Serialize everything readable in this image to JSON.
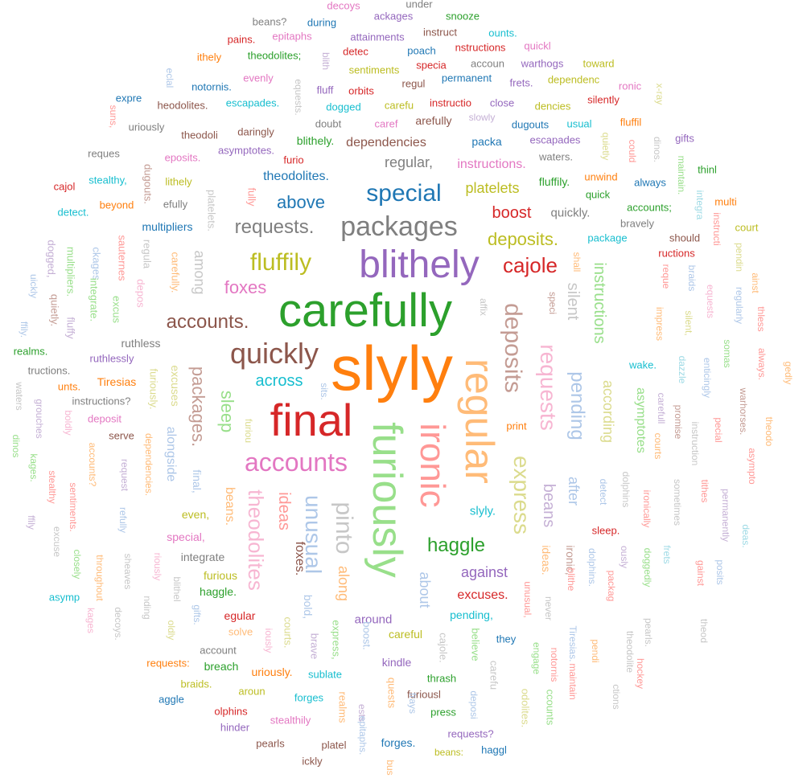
{
  "palette": {
    "blue": "#1f77b4",
    "orange": "#ff7f0e",
    "green": "#2ca02c",
    "red": "#d62728",
    "purple": "#9467bd",
    "brown": "#8c564b",
    "pink": "#e377c2",
    "gray": "#7f7f7f",
    "olive": "#bcbd22",
    "cyan": "#17becf",
    "lightblue": "#aec7e8",
    "lightorange": "#ffbb78",
    "lightgreen": "#98df8a",
    "lightred": "#ff9896",
    "lightpurple": "#c5b0d5",
    "lightbrown": "#c49c94",
    "lightpink": "#f7b6d2",
    "lightgray": "#c7c7c7",
    "lightolive": "#dbdb8d",
    "lightcyan": "#9edae5"
  },
  "words": [
    {
      "text": "slyly",
      "color": "orange"
    },
    {
      "text": "carefully",
      "color": "green"
    },
    {
      "text": "final",
      "color": "red"
    },
    {
      "text": "furiously",
      "color": "lightgreen"
    },
    {
      "text": "regular",
      "color": "lightorange"
    },
    {
      "text": "blithely",
      "color": "purple"
    },
    {
      "text": "ironic",
      "color": "lightred"
    },
    {
      "text": "packages",
      "color": "gray"
    },
    {
      "text": "quickly",
      "color": "brown"
    },
    {
      "text": "accounts",
      "color": "pink"
    },
    {
      "text": "deposits",
      "color": "lightbrown"
    },
    {
      "text": "special",
      "color": "blue"
    },
    {
      "text": "express",
      "color": "lightolive"
    },
    {
      "text": "pinto",
      "color": "lightgray"
    },
    {
      "text": "requests",
      "color": "lightpink"
    },
    {
      "text": "unusual",
      "color": "lightblue"
    },
    {
      "text": "fluffily",
      "color": "olive"
    },
    {
      "text": "cajole",
      "color": "red"
    },
    {
      "text": "theodolites",
      "color": "lightpink"
    },
    {
      "text": "haggle",
      "color": "green"
    },
    {
      "text": "pending",
      "color": "lightblue"
    },
    {
      "text": "requests.",
      "color": "gray"
    },
    {
      "text": "accounts.",
      "color": "brown"
    },
    {
      "text": "packages.",
      "color": "lightbrown"
    },
    {
      "text": "instructions",
      "color": "lightgreen"
    },
    {
      "text": "deposits.",
      "color": "olive"
    },
    {
      "text": "foxes",
      "color": "pink"
    },
    {
      "text": "above",
      "color": "blue"
    },
    {
      "text": "ideas",
      "color": "lightred"
    },
    {
      "text": "sleep",
      "color": "lightgreen"
    },
    {
      "text": "beans",
      "color": "lightpurple"
    },
    {
      "text": "silent",
      "color": "lightgray"
    },
    {
      "text": "according",
      "color": "lightolive"
    },
    {
      "text": "boost",
      "color": "red"
    },
    {
      "text": "across",
      "color": "cyan"
    },
    {
      "text": "asymptotes",
      "color": "lightgreen"
    },
    {
      "text": "after",
      "color": "lightblue"
    },
    {
      "text": "along",
      "color": "lightorange"
    },
    {
      "text": "about",
      "color": "lightblue"
    },
    {
      "text": "against",
      "color": "purple"
    },
    {
      "text": "platelets",
      "color": "olive"
    },
    {
      "text": "theodolites.",
      "color": "blue"
    },
    {
      "text": "among",
      "color": "lightgray"
    },
    {
      "text": "foxes.",
      "color": "brown"
    },
    {
      "text": "ruthless",
      "color": "gray"
    },
    {
      "text": "instructions.",
      "color": "pink"
    },
    {
      "text": "regular,",
      "color": "gray"
    },
    {
      "text": "dependencies",
      "color": "brown"
    },
    {
      "text": "excuses.",
      "color": "red"
    },
    {
      "text": "quickly.",
      "color": "gray"
    },
    {
      "text": "slyly.",
      "color": "cyan"
    },
    {
      "text": "bold,",
      "color": "lightblue"
    },
    {
      "text": "around",
      "color": "purple"
    },
    {
      "text": "pending,",
      "color": "cyan"
    },
    {
      "text": "ironic,",
      "color": "lightbrown"
    },
    {
      "text": "sleep.",
      "color": "red"
    },
    {
      "text": "ideas.",
      "color": "lightorange"
    },
    {
      "text": "beans.",
      "color": "lightorange"
    },
    {
      "text": "alongside",
      "color": "lightblue"
    },
    {
      "text": "excuses",
      "color": "lightolive"
    },
    {
      "text": "final,",
      "color": "lightblue"
    },
    {
      "text": "special,",
      "color": "pink"
    },
    {
      "text": "even,",
      "color": "olive"
    },
    {
      "text": "integrate",
      "color": "gray"
    },
    {
      "text": "furious",
      "color": "olive"
    },
    {
      "text": "haggle.",
      "color": "green"
    },
    {
      "text": "egular",
      "color": "red"
    },
    {
      "text": "solve",
      "color": "lightorange"
    },
    {
      "text": "careful",
      "color": "olive"
    },
    {
      "text": "courts.",
      "color": "lightolive"
    },
    {
      "text": "brave",
      "color": "lightpurple"
    },
    {
      "text": "express,",
      "color": "lightgreen"
    },
    {
      "text": "boost.",
      "color": "lightblue"
    },
    {
      "text": "cajole.",
      "color": "lightgray"
    },
    {
      "text": "believe",
      "color": "lightgreen"
    },
    {
      "text": "they",
      "color": "blue"
    },
    {
      "text": "kindle",
      "color": "purple"
    },
    {
      "text": "thrash",
      "color": "green"
    },
    {
      "text": "furiousl",
      "color": "brown"
    },
    {
      "text": "press",
      "color": "green"
    },
    {
      "text": "requests?",
      "color": "purple"
    },
    {
      "text": "haggl",
      "color": "blue"
    },
    {
      "text": "beans:",
      "color": "olive"
    },
    {
      "text": "forges.",
      "color": "blue"
    },
    {
      "text": "sublate",
      "color": "cyan"
    },
    {
      "text": "forges",
      "color": "cyan"
    },
    {
      "text": "realms",
      "color": "lightorange"
    },
    {
      "text": "quests",
      "color": "lightorange"
    },
    {
      "text": "frays",
      "color": "lightblue"
    },
    {
      "text": "deposi",
      "color": "lightblue"
    },
    {
      "text": "carefu",
      "color": "lightgray"
    },
    {
      "text": "account",
      "color": "gray"
    },
    {
      "text": "breach",
      "color": "green"
    },
    {
      "text": "uriously.",
      "color": "orange"
    },
    {
      "text": "requests:",
      "color": "orange"
    },
    {
      "text": "braids.",
      "color": "olive"
    },
    {
      "text": "aroun",
      "color": "olive"
    },
    {
      "text": "aggle",
      "color": "blue"
    },
    {
      "text": "olphins",
      "color": "red"
    },
    {
      "text": "stealthily",
      "color": "pink"
    },
    {
      "text": "hinder",
      "color": "purple"
    },
    {
      "text": "pearls",
      "color": "brown"
    },
    {
      "text": "platel",
      "color": "brown"
    },
    {
      "text": "ickly",
      "color": "brown"
    },
    {
      "text": "bus",
      "color": "lightorange"
    },
    {
      "text": "ests",
      "color": "lightpurple"
    },
    {
      "text": "epitaphs.",
      "color": "lightblue"
    },
    {
      "text": "odolites.",
      "color": "lightolive"
    },
    {
      "text": "ccounts",
      "color": "lightgreen"
    },
    {
      "text": "engage",
      "color": "lightgreen"
    },
    {
      "text": "notornis",
      "color": "lightred"
    },
    {
      "text": "maintain",
      "color": "lightred"
    },
    {
      "text": "Tiresias.",
      "color": "lightblue"
    },
    {
      "text": "pendi",
      "color": "lightorange"
    },
    {
      "text": "ctions",
      "color": "lightgray"
    },
    {
      "text": "theodolite",
      "color": "lightgray"
    },
    {
      "text": "hockey",
      "color": "lightred"
    },
    {
      "text": "pearls.",
      "color": "lightgray"
    },
    {
      "text": "theod",
      "color": "lightgray"
    },
    {
      "text": "doggedly",
      "color": "lightgreen"
    },
    {
      "text": "ously",
      "color": "lightpurple"
    },
    {
      "text": "packag",
      "color": "lightred"
    },
    {
      "text": "dolphins.",
      "color": "lightblue"
    },
    {
      "text": "blithe",
      "color": "lightred"
    },
    {
      "text": "never",
      "color": "lightgray"
    },
    {
      "text": "unusual,",
      "color": "lightred"
    },
    {
      "text": "ironically",
      "color": "lightred"
    },
    {
      "text": "dolphins",
      "color": "lightgray"
    },
    {
      "text": "detect",
      "color": "lightblue"
    },
    {
      "text": "sometimes",
      "color": "lightgray"
    },
    {
      "text": "tithes",
      "color": "lightred"
    },
    {
      "text": "permanently",
      "color": "lightpurple"
    },
    {
      "text": "frets",
      "color": "lightcyan"
    },
    {
      "text": "gainst",
      "color": "lightred"
    },
    {
      "text": "posits",
      "color": "lightblue"
    },
    {
      "text": "deas.",
      "color": "lightcyan"
    },
    {
      "text": "asympto",
      "color": "lightred"
    },
    {
      "text": "theodo",
      "color": "lightorange"
    },
    {
      "text": "gedly",
      "color": "lightorange"
    },
    {
      "text": "always.",
      "color": "lightred"
    },
    {
      "text": "warhorses.",
      "color": "lightbrown"
    },
    {
      "text": "pecial",
      "color": "lightred"
    },
    {
      "text": "instruction",
      "color": "lightgray"
    },
    {
      "text": "promise",
      "color": "lightbrown"
    },
    {
      "text": "courts",
      "color": "lightorange"
    },
    {
      "text": "carefull",
      "color": "lightpurple"
    },
    {
      "text": "wake.",
      "color": "cyan"
    },
    {
      "text": "dazzle",
      "color": "lightcyan"
    },
    {
      "text": "enticingly",
      "color": "lightblue"
    },
    {
      "text": "somas",
      "color": "lightgreen"
    },
    {
      "text": "thless",
      "color": "lightred"
    },
    {
      "text": "impress",
      "color": "lightorange"
    },
    {
      "text": "silent,",
      "color": "lightolive"
    },
    {
      "text": "equests",
      "color": "lightpink"
    },
    {
      "text": "regularly",
      "color": "lightblue"
    },
    {
      "text": "ainst",
      "color": "lightorange"
    },
    {
      "text": "braids",
      "color": "lightblue"
    },
    {
      "text": "reque",
      "color": "lightred"
    },
    {
      "text": "pendin",
      "color": "lightolive"
    },
    {
      "text": "instructi",
      "color": "lightred"
    },
    {
      "text": "integra",
      "color": "lightcyan"
    },
    {
      "text": "maintain.",
      "color": "lightgreen"
    },
    {
      "text": "dinos.",
      "color": "lightgray"
    },
    {
      "text": "x-ray",
      "color": "lightolive"
    },
    {
      "text": "could",
      "color": "lightred"
    },
    {
      "text": "quietly",
      "color": "lightolive"
    },
    {
      "text": "court",
      "color": "olive"
    },
    {
      "text": "should",
      "color": "brown"
    },
    {
      "text": "ructions",
      "color": "red"
    },
    {
      "text": "multi",
      "color": "orange"
    },
    {
      "text": "thinl",
      "color": "green"
    },
    {
      "text": "gifts",
      "color": "purple"
    },
    {
      "text": "always",
      "color": "blue"
    },
    {
      "text": "accounts;",
      "color": "green"
    },
    {
      "text": "bravely",
      "color": "gray"
    },
    {
      "text": "package",
      "color": "cyan"
    },
    {
      "text": "unwind",
      "color": "orange"
    },
    {
      "text": "quick",
      "color": "green"
    },
    {
      "text": "fluffily.",
      "color": "green"
    },
    {
      "text": "waters.",
      "color": "gray"
    },
    {
      "text": "escapades",
      "color": "purple"
    },
    {
      "text": "dugouts",
      "color": "blue"
    },
    {
      "text": "usual",
      "color": "cyan"
    },
    {
      "text": "fluffil",
      "color": "orange"
    },
    {
      "text": "silently",
      "color": "red"
    },
    {
      "text": "ronic",
      "color": "pink"
    },
    {
      "text": "toward",
      "color": "olive"
    },
    {
      "text": "dependenc",
      "color": "olive"
    },
    {
      "text": "warthogs",
      "color": "purple"
    },
    {
      "text": "quickl",
      "color": "pink"
    },
    {
      "text": "frets.",
      "color": "purple"
    },
    {
      "text": "dencies",
      "color": "olive"
    },
    {
      "text": "close",
      "color": "purple"
    },
    {
      "text": "slowly",
      "color": "lightpurple"
    },
    {
      "text": "packa",
      "color": "blue"
    },
    {
      "text": "permanent",
      "color": "blue"
    },
    {
      "text": "accoun",
      "color": "gray"
    },
    {
      "text": "specia",
      "color": "red"
    },
    {
      "text": "instructio",
      "color": "red"
    },
    {
      "text": "carefu",
      "color": "olive"
    },
    {
      "text": "arefully",
      "color": "brown"
    },
    {
      "text": "caref",
      "color": "pink"
    },
    {
      "text": "regul",
      "color": "brown"
    },
    {
      "text": "nstructions",
      "color": "red"
    },
    {
      "text": "instruct",
      "color": "brown"
    },
    {
      "text": "ounts.",
      "color": "cyan"
    },
    {
      "text": "snooze",
      "color": "green"
    },
    {
      "text": "under",
      "color": "gray"
    },
    {
      "text": "ackages",
      "color": "purple"
    },
    {
      "text": "decoys",
      "color": "pink"
    },
    {
      "text": "during",
      "color": "blue"
    },
    {
      "text": "beans?",
      "color": "gray"
    },
    {
      "text": "attainments",
      "color": "purple"
    },
    {
      "text": "poach",
      "color": "blue"
    },
    {
      "text": "detec",
      "color": "red"
    },
    {
      "text": "epitaphs",
      "color": "pink"
    },
    {
      "text": "pains.",
      "color": "red"
    },
    {
      "text": "theodolites;",
      "color": "green"
    },
    {
      "text": "ithely",
      "color": "orange"
    },
    {
      "text": "blith",
      "color": "lightpurple"
    },
    {
      "text": "sentiments",
      "color": "olive"
    },
    {
      "text": "orbits",
      "color": "red"
    },
    {
      "text": "fluff",
      "color": "purple"
    },
    {
      "text": "evenly",
      "color": "pink"
    },
    {
      "text": "notornis.",
      "color": "blue"
    },
    {
      "text": "eclal",
      "color": "lightblue"
    },
    {
      "text": "expre",
      "color": "blue"
    },
    {
      "text": "heodolites.",
      "color": "brown"
    },
    {
      "text": "escapades.",
      "color": "cyan"
    },
    {
      "text": "equests.",
      "color": "lightgray"
    },
    {
      "text": "dogged",
      "color": "cyan"
    },
    {
      "text": "doubt",
      "color": "gray"
    },
    {
      "text": "uriously",
      "color": "gray"
    },
    {
      "text": "theodoli",
      "color": "brown"
    },
    {
      "text": "daringly",
      "color": "brown"
    },
    {
      "text": "blithely.",
      "color": "green"
    },
    {
      "text": "reques",
      "color": "gray"
    },
    {
      "text": "asymptotes.",
      "color": "purple"
    },
    {
      "text": "furio",
      "color": "red"
    },
    {
      "text": "eposits.",
      "color": "pink"
    },
    {
      "text": "stealthy,",
      "color": "cyan"
    },
    {
      "text": "cajol",
      "color": "red"
    },
    {
      "text": "beyond",
      "color": "orange"
    },
    {
      "text": "lithely",
      "color": "olive"
    },
    {
      "text": "efully",
      "color": "gray"
    },
    {
      "text": "detect.",
      "color": "cyan"
    },
    {
      "text": "multipliers",
      "color": "blue"
    },
    {
      "text": "platelets.",
      "color": "lightgray"
    },
    {
      "text": "fully",
      "color": "lightred"
    },
    {
      "text": "dugouts.",
      "color": "lightbrown"
    },
    {
      "text": "suns,",
      "color": "lightred"
    },
    {
      "text": "regula",
      "color": "lightgray"
    },
    {
      "text": "sauternes",
      "color": "lightred"
    },
    {
      "text": "ckages",
      "color": "lightblue"
    },
    {
      "text": "multipliers.",
      "color": "lightgreen"
    },
    {
      "text": "dogged,",
      "color": "lightpurple"
    },
    {
      "text": "uickly",
      "color": "lightblue"
    },
    {
      "text": "quietly.",
      "color": "lightbrown"
    },
    {
      "text": "fluffy",
      "color": "lightpurple"
    },
    {
      "text": "integrate.",
      "color": "lightgreen"
    },
    {
      "text": "excus",
      "color": "lightgreen"
    },
    {
      "text": "depos",
      "color": "lightpink"
    },
    {
      "text": "carefully.",
      "color": "lightorange"
    },
    {
      "text": "ffily.",
      "color": "lightblue"
    },
    {
      "text": "realms.",
      "color": "green"
    },
    {
      "text": "ruthlessly",
      "color": "purple"
    },
    {
      "text": "tructions.",
      "color": "gray"
    },
    {
      "text": "Tiresias",
      "color": "orange"
    },
    {
      "text": "unts.",
      "color": "orange"
    },
    {
      "text": "instructions?",
      "color": "gray"
    },
    {
      "text": "deposit",
      "color": "pink"
    },
    {
      "text": "serve",
      "color": "brown"
    },
    {
      "text": "furiously.",
      "color": "lightolive"
    },
    {
      "text": "furiou",
      "color": "lightolive"
    },
    {
      "text": "sits.",
      "color": "lightblue"
    },
    {
      "text": "affix",
      "color": "lightgray"
    },
    {
      "text": "speci",
      "color": "lightbrown"
    },
    {
      "text": "shall",
      "color": "lightorange"
    },
    {
      "text": "print",
      "color": "orange"
    },
    {
      "text": "waters",
      "color": "lightgray"
    },
    {
      "text": "grouches",
      "color": "lightpurple"
    },
    {
      "text": "boldly",
      "color": "lightpink"
    },
    {
      "text": "dinos",
      "color": "lightgreen"
    },
    {
      "text": "kages.",
      "color": "lightgreen"
    },
    {
      "text": "stealthy",
      "color": "lightred"
    },
    {
      "text": "accounts?",
      "color": "lightorange"
    },
    {
      "text": "sentiments.",
      "color": "lightred"
    },
    {
      "text": "request",
      "color": "lightpurple"
    },
    {
      "text": "dependencies.",
      "color": "lightorange"
    },
    {
      "text": "refully",
      "color": "lightblue"
    },
    {
      "text": "ffily",
      "color": "lightpurple"
    },
    {
      "text": "excuse",
      "color": "lightgray"
    },
    {
      "text": "closely",
      "color": "lightgreen"
    },
    {
      "text": "throughout",
      "color": "lightorange"
    },
    {
      "text": "sheaves",
      "color": "lightgray"
    },
    {
      "text": "riously",
      "color": "lightpink"
    },
    {
      "text": "blithel",
      "color": "lightgray"
    },
    {
      "text": "asymp",
      "color": "cyan"
    },
    {
      "text": "kages",
      "color": "lightpink"
    },
    {
      "text": "decoys.",
      "color": "lightgray"
    },
    {
      "text": "nding",
      "color": "lightgray"
    },
    {
      "text": "oldly",
      "color": "lightolive"
    },
    {
      "text": "gifts.",
      "color": "lightblue"
    },
    {
      "text": "iously",
      "color": "lightpink"
    }
  ]
}
